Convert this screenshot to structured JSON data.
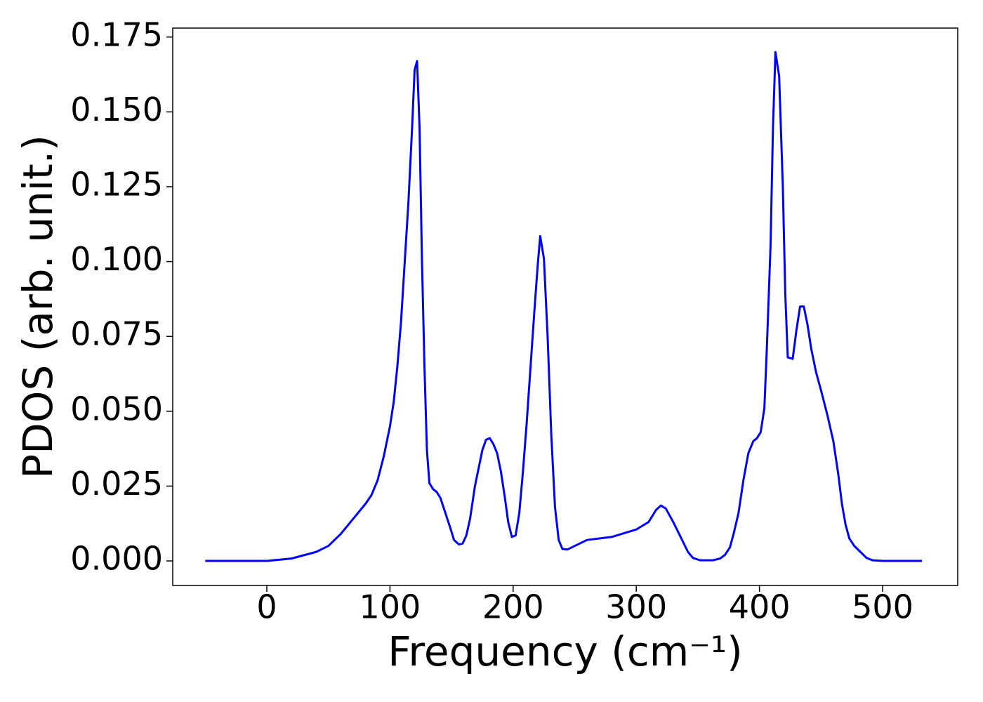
{
  "chart_data": {
    "type": "line",
    "xlabel": "Frequency (cm⁻¹)",
    "ylabel": "PDOS (arb. unit.)",
    "x": [
      -50,
      0,
      20,
      40,
      50,
      60,
      70,
      80,
      85,
      90,
      95,
      100,
      103,
      106,
      109,
      112,
      115,
      118,
      120,
      122,
      124,
      126,
      128,
      130,
      132,
      135,
      138,
      141,
      145,
      149,
      152,
      156,
      159,
      162,
      165,
      169,
      172,
      175,
      178,
      181,
      184,
      187,
      190,
      193,
      196,
      199,
      202,
      205,
      208,
      211,
      214,
      217,
      220,
      222,
      225,
      228,
      231,
      234,
      237,
      240,
      244,
      250,
      260,
      280,
      300,
      310,
      316,
      320,
      324,
      330,
      336,
      342,
      346,
      352,
      362,
      368,
      372,
      376,
      379,
      383,
      387,
      391,
      395,
      398,
      401,
      404,
      406,
      409,
      411,
      413,
      416,
      419,
      421,
      423,
      427,
      430,
      433,
      436,
      439,
      442,
      446,
      450,
      455,
      460,
      464,
      467,
      470,
      473,
      477,
      482,
      487,
      492,
      500,
      532
    ],
    "series": [
      {
        "color": "#0000ff",
        "values": [
          0,
          0,
          0.0008,
          0.003,
          0.005,
          0.009,
          0.014,
          0.019,
          0.022,
          0.027,
          0.035,
          0.045,
          0.053,
          0.065,
          0.08,
          0.1,
          0.12,
          0.145,
          0.164,
          0.167,
          0.145,
          0.1,
          0.065,
          0.037,
          0.026,
          0.024,
          0.023,
          0.021,
          0.016,
          0.011,
          0.007,
          0.0055,
          0.0058,
          0.0085,
          0.014,
          0.025,
          0.031,
          0.037,
          0.0405,
          0.041,
          0.039,
          0.036,
          0.03,
          0.022,
          0.013,
          0.008,
          0.0085,
          0.016,
          0.03,
          0.046,
          0.064,
          0.082,
          0.099,
          0.1085,
          0.101,
          0.075,
          0.042,
          0.018,
          0.007,
          0.004,
          0.0038,
          0.005,
          0.007,
          0.008,
          0.0105,
          0.013,
          0.017,
          0.0185,
          0.0175,
          0.013,
          0.008,
          0.003,
          0.001,
          0.0002,
          0.0002,
          0.0008,
          0.002,
          0.0045,
          0.009,
          0.016,
          0.027,
          0.036,
          0.04,
          0.041,
          0.043,
          0.051,
          0.071,
          0.105,
          0.145,
          0.17,
          0.162,
          0.125,
          0.089,
          0.068,
          0.0675,
          0.077,
          0.085,
          0.085,
          0.079,
          0.071,
          0.063,
          0.057,
          0.049,
          0.04,
          0.029,
          0.019,
          0.012,
          0.0075,
          0.005,
          0.003,
          0.001,
          0.0002,
          0,
          0
        ]
      }
    ],
    "xlim": [
      -76.4,
      561
    ],
    "ylim": [
      -0.0082,
      0.178
    ],
    "xticks": [
      0,
      100,
      200,
      300,
      400,
      500
    ],
    "yticks": [
      {
        "value": 0,
        "label": "0.000"
      },
      {
        "value": 0.025,
        "label": "0.025"
      },
      {
        "value": 0.05,
        "label": "0.050"
      },
      {
        "value": 0.075,
        "label": "0.075"
      },
      {
        "value": 0.1,
        "label": "0.100"
      },
      {
        "value": 0.125,
        "label": "0.125"
      },
      {
        "value": 0.15,
        "label": "0.150"
      },
      {
        "value": 0.175,
        "label": "0.175"
      }
    ]
  }
}
